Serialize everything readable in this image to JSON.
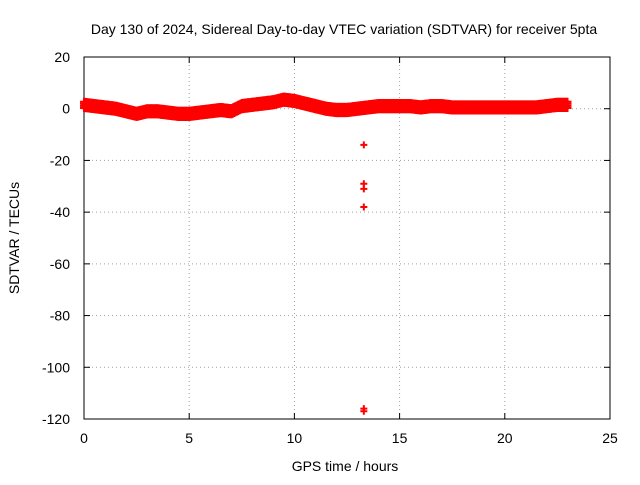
{
  "chart_data": {
    "type": "scatter",
    "title": "Day 130 of 2024, Sidereal Day-to-day VTEC variation (SDTVAR) for receiver 5pta",
    "xlabel": "GPS time / hours",
    "ylabel": "SDTVAR / TECUs",
    "xlim": [
      0,
      25
    ],
    "ylim": [
      -120,
      20
    ],
    "xticks": [
      0,
      5,
      10,
      15,
      20,
      25
    ],
    "yticks": [
      20,
      0,
      -20,
      -40,
      -60,
      -80,
      -100,
      -120
    ],
    "grid": true,
    "marker": "+",
    "series_color": "#ff0000",
    "series": [
      {
        "name": "SDTVAR",
        "trend": [
          [
            0.0,
            1.5
          ],
          [
            0.5,
            1.0
          ],
          [
            1.0,
            0.5
          ],
          [
            1.5,
            0.0
          ],
          [
            2.0,
            -1.0
          ],
          [
            2.5,
            -2.0
          ],
          [
            3.0,
            -1.0
          ],
          [
            3.5,
            -1.0
          ],
          [
            4.0,
            -1.5
          ],
          [
            4.5,
            -2.0
          ],
          [
            5.0,
            -2.0
          ],
          [
            5.5,
            -1.5
          ],
          [
            6.0,
            -1.0
          ],
          [
            6.5,
            -0.5
          ],
          [
            7.0,
            -1.0
          ],
          [
            7.5,
            1.0
          ],
          [
            8.0,
            1.5
          ],
          [
            8.5,
            2.0
          ],
          [
            9.0,
            2.5
          ],
          [
            9.5,
            3.5
          ],
          [
            10.0,
            3.0
          ],
          [
            10.5,
            2.0
          ],
          [
            11.0,
            1.0
          ],
          [
            11.5,
            0.0
          ],
          [
            12.0,
            -0.5
          ],
          [
            12.5,
            -0.5
          ],
          [
            13.0,
            0.0
          ],
          [
            13.5,
            0.5
          ],
          [
            14.0,
            1.0
          ],
          [
            14.5,
            1.0
          ],
          [
            15.0,
            1.0
          ],
          [
            15.5,
            1.0
          ],
          [
            16.0,
            0.5
          ],
          [
            16.5,
            1.0
          ],
          [
            17.0,
            1.0
          ],
          [
            17.5,
            0.5
          ],
          [
            18.0,
            0.5
          ],
          [
            18.5,
            0.5
          ],
          [
            19.0,
            0.5
          ],
          [
            19.5,
            0.5
          ],
          [
            20.0,
            0.5
          ],
          [
            20.5,
            0.5
          ],
          [
            21.0,
            0.5
          ],
          [
            21.5,
            0.5
          ],
          [
            22.0,
            1.0
          ],
          [
            22.5,
            1.5
          ],
          [
            23.0,
            1.5
          ]
        ],
        "outliers": [
          [
            13.3,
            -14
          ],
          [
            13.3,
            -29
          ],
          [
            13.3,
            -31
          ],
          [
            13.3,
            -38
          ],
          [
            13.3,
            -116
          ],
          [
            13.3,
            -117
          ]
        ]
      }
    ]
  }
}
